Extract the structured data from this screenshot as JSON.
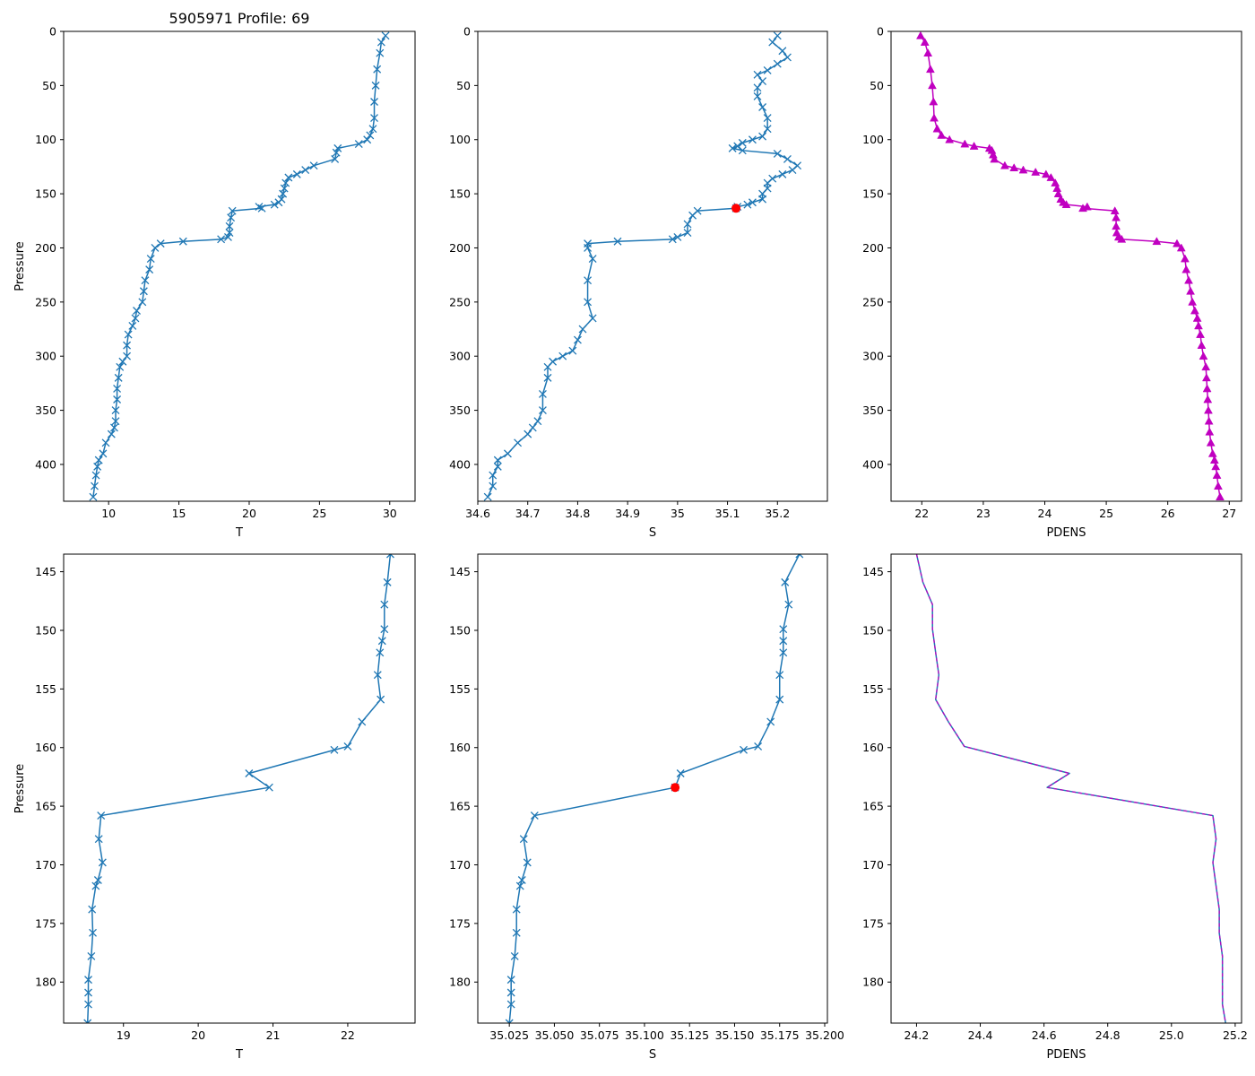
{
  "figure_title": "5905971 Profile: 69",
  "colors": {
    "line": "#1f77b4",
    "density": "#c000c0",
    "highlight": "#ff0000",
    "dash": "#c000c0"
  },
  "chart_data": [
    {
      "id": "top-t",
      "type": "line",
      "marker": "x",
      "xlabel": "T",
      "ylabel": "Pressure",
      "xlim": [
        6.8,
        31.8
      ],
      "ylim": [
        434,
        0
      ],
      "xticks": [
        10,
        15,
        20,
        25,
        30
      ],
      "yticks": [
        0,
        50,
        100,
        150,
        200,
        250,
        300,
        350,
        400
      ],
      "series": [
        {
          "name": "T",
          "y": [
            4,
            10,
            20,
            35,
            50,
            65,
            80,
            90,
            96,
            100,
            104,
            108,
            112,
            118,
            124,
            128,
            132,
            135,
            140,
            145,
            150,
            155,
            158,
            160,
            162,
            163.4,
            165.8,
            172,
            180,
            186,
            190,
            192,
            194,
            196,
            200,
            210,
            220,
            230,
            240,
            250,
            258,
            265,
            272,
            280,
            290,
            300,
            305,
            310,
            320,
            330,
            340,
            350,
            360,
            366,
            372,
            380,
            390,
            396,
            402,
            410,
            420,
            430
          ],
          "x": [
            29.7,
            29.4,
            29.3,
            29.1,
            29.0,
            28.9,
            28.9,
            28.8,
            28.6,
            28.4,
            27.8,
            26.3,
            26.2,
            26.1,
            24.6,
            24.0,
            23.4,
            22.8,
            22.6,
            22.5,
            22.4,
            22.3,
            22.1,
            21.8,
            20.7,
            20.9,
            18.8,
            18.7,
            18.6,
            18.6,
            18.5,
            18.0,
            15.3,
            13.7,
            13.3,
            13.0,
            12.9,
            12.6,
            12.5,
            12.4,
            12.0,
            11.9,
            11.7,
            11.4,
            11.3,
            11.3,
            11.0,
            10.8,
            10.7,
            10.6,
            10.6,
            10.5,
            10.5,
            10.4,
            10.2,
            9.8,
            9.6,
            9.3,
            9.2,
            9.1,
            9.0,
            8.9
          ]
        }
      ]
    },
    {
      "id": "top-s",
      "type": "line",
      "marker": "x",
      "xlabel": "S",
      "ylabel": "",
      "xlim": [
        34.6,
        35.3
      ],
      "ylim": [
        434,
        0
      ],
      "xticks": [
        34.6,
        34.7,
        34.8,
        34.9,
        35.0,
        35.1,
        35.2
      ],
      "yticks": [
        0,
        50,
        100,
        150,
        200,
        250,
        300,
        350,
        400
      ],
      "series": [
        {
          "name": "S",
          "y": [
            4,
            10,
            18,
            24,
            30,
            36,
            40,
            46,
            52,
            60,
            70,
            80,
            90,
            97,
            100,
            103,
            106,
            108,
            110,
            113,
            118,
            124,
            128,
            132,
            136,
            140,
            145,
            150,
            155,
            158,
            160,
            162,
            163.4,
            165.8,
            170,
            178,
            186,
            190,
            192,
            194,
            196,
            200,
            210,
            230,
            250,
            265,
            275,
            285,
            295,
            300,
            305,
            310,
            320,
            335,
            350,
            360,
            366,
            372,
            380,
            390,
            396,
            402,
            410,
            420,
            430
          ],
          "x": [
            35.2,
            35.19,
            35.21,
            35.22,
            35.2,
            35.18,
            35.16,
            35.17,
            35.16,
            35.16,
            35.17,
            35.18,
            35.18,
            35.17,
            35.15,
            35.13,
            35.12,
            35.11,
            35.13,
            35.2,
            35.22,
            35.24,
            35.23,
            35.21,
            35.19,
            35.18,
            35.18,
            35.17,
            35.17,
            35.15,
            35.14,
            35.12,
            35.117,
            35.04,
            35.03,
            35.02,
            35.02,
            35.0,
            34.99,
            34.88,
            34.82,
            34.82,
            34.83,
            34.82,
            34.82,
            34.83,
            34.81,
            34.8,
            34.79,
            34.77,
            34.75,
            34.74,
            34.74,
            34.73,
            34.73,
            34.72,
            34.71,
            34.7,
            34.68,
            34.66,
            34.64,
            34.64,
            34.63,
            34.63,
            34.62
          ]
        }
      ],
      "highlight": {
        "x": 35.117,
        "y": 163.4
      }
    },
    {
      "id": "top-pdens",
      "type": "line",
      "marker": "triangle",
      "xlabel": "PDENS",
      "ylabel": "",
      "xlim": [
        21.5,
        27.2
      ],
      "ylim": [
        434,
        0
      ],
      "xticks": [
        22,
        23,
        24,
        25,
        26,
        27
      ],
      "yticks": [
        0,
        50,
        100,
        150,
        200,
        250,
        300,
        350,
        400
      ],
      "series": [
        {
          "name": "PDENS",
          "y": [
            4,
            10,
            20,
            35,
            50,
            65,
            80,
            90,
            96,
            100,
            104,
            106,
            108,
            110,
            114,
            118,
            124,
            126,
            128,
            130,
            132,
            135,
            140,
            145,
            150,
            155,
            158,
            160,
            162,
            163.4,
            165.8,
            172,
            180,
            186,
            190,
            192,
            194,
            196,
            200,
            210,
            220,
            230,
            240,
            250,
            258,
            265,
            272,
            280,
            290,
            300,
            310,
            320,
            330,
            340,
            350,
            360,
            370,
            380,
            390,
            396,
            402,
            410,
            420,
            430
          ],
          "x": [
            21.98,
            22.05,
            22.1,
            22.14,
            22.17,
            22.19,
            22.2,
            22.25,
            22.32,
            22.45,
            22.7,
            22.85,
            23.1,
            23.14,
            23.16,
            23.18,
            23.35,
            23.5,
            23.65,
            23.85,
            24.02,
            24.1,
            24.17,
            24.2,
            24.22,
            24.26,
            24.3,
            24.35,
            24.69,
            24.62,
            25.14,
            25.16,
            25.16,
            25.17,
            25.2,
            25.25,
            25.82,
            26.15,
            26.22,
            26.28,
            26.3,
            26.34,
            26.37,
            26.4,
            26.44,
            26.48,
            26.5,
            26.53,
            26.55,
            26.58,
            26.62,
            26.63,
            26.64,
            26.65,
            26.66,
            26.67,
            26.68,
            26.7,
            26.73,
            26.76,
            26.78,
            26.8,
            26.82,
            26.85
          ]
        }
      ]
    },
    {
      "id": "bottom-t",
      "type": "line",
      "marker": "x",
      "xlabel": "T",
      "ylabel": "Pressure",
      "xlim": [
        18.2,
        22.9
      ],
      "ylim": [
        183.5,
        143.5
      ],
      "xticks": [
        19,
        20,
        21,
        22
      ],
      "yticks": [
        145,
        150,
        155,
        160,
        165,
        170,
        175,
        180
      ],
      "series": [
        {
          "name": "T",
          "y": [
            143.5,
            145.9,
            147.8,
            149.9,
            150.9,
            151.9,
            153.8,
            155.9,
            157.8,
            159.9,
            160.2,
            162.2,
            163.4,
            165.8,
            167.8,
            169.8,
            171.3,
            171.8,
            173.8,
            175.8,
            177.8,
            179.8,
            180.9,
            181.9,
            183.5
          ],
          "x": [
            22.57,
            22.53,
            22.49,
            22.49,
            22.46,
            22.43,
            22.4,
            22.44,
            22.19,
            22.0,
            21.82,
            20.68,
            20.95,
            18.7,
            18.67,
            18.72,
            18.66,
            18.63,
            18.58,
            18.59,
            18.57,
            18.53,
            18.53,
            18.53,
            18.52
          ]
        }
      ]
    },
    {
      "id": "bottom-s",
      "type": "line",
      "marker": "x",
      "xlabel": "S",
      "ylabel": "",
      "xlim": [
        35.0075,
        35.2015
      ],
      "ylim": [
        183.5,
        143.5
      ],
      "xticks": [
        35.025,
        35.05,
        35.075,
        35.1,
        35.125,
        35.15,
        35.175,
        35.2
      ],
      "tick_labels": [
        "35.025",
        "35.050",
        "35.075",
        "35.100",
        "35.125",
        "35.150",
        "35.175",
        "35.200"
      ],
      "yticks": [
        145,
        150,
        155,
        160,
        165,
        170,
        175,
        180
      ],
      "series": [
        {
          "name": "S",
          "y": [
            143.5,
            145.9,
            147.8,
            149.9,
            150.9,
            151.9,
            153.8,
            155.9,
            157.8,
            159.9,
            160.2,
            162.2,
            163.4,
            165.8,
            167.8,
            169.8,
            171.3,
            171.8,
            173.8,
            175.8,
            177.8,
            179.8,
            180.9,
            181.9,
            183.5
          ],
          "x": [
            35.186,
            35.178,
            35.18,
            35.177,
            35.177,
            35.177,
            35.175,
            35.175,
            35.17,
            35.163,
            35.155,
            35.12,
            35.117,
            35.039,
            35.033,
            35.035,
            35.032,
            35.031,
            35.029,
            35.029,
            35.028,
            35.026,
            35.026,
            35.026,
            35.025
          ]
        }
      ],
      "highlight": {
        "x": 35.117,
        "y": 163.4
      }
    },
    {
      "id": "bottom-pdens",
      "type": "line",
      "marker": "none",
      "overlay": "dashed",
      "xlabel": "PDENS",
      "ylabel": "",
      "xlim": [
        24.12,
        25.22
      ],
      "ylim": [
        183.5,
        143.5
      ],
      "xticks": [
        24.2,
        24.4,
        24.6,
        24.8,
        25.0,
        25.2
      ],
      "tick_labels": [
        "24.2",
        "24.4",
        "24.6",
        "24.8",
        "25.0",
        "25.2"
      ],
      "yticks": [
        145,
        150,
        155,
        160,
        165,
        170,
        175,
        180
      ],
      "series": [
        {
          "name": "PDENS",
          "y": [
            143.5,
            145.9,
            147.8,
            149.9,
            151.9,
            153.8,
            155.9,
            157.8,
            159.9,
            162.2,
            163.4,
            165.8,
            167.8,
            169.8,
            171.8,
            173.8,
            175.8,
            177.8,
            179.8,
            181.9,
            183.5
          ],
          "x": [
            24.2,
            24.22,
            24.25,
            24.25,
            24.26,
            24.27,
            24.26,
            24.3,
            24.35,
            24.68,
            24.61,
            25.13,
            25.14,
            25.13,
            25.14,
            25.15,
            25.15,
            25.16,
            25.16,
            25.16,
            25.17
          ]
        }
      ]
    }
  ]
}
